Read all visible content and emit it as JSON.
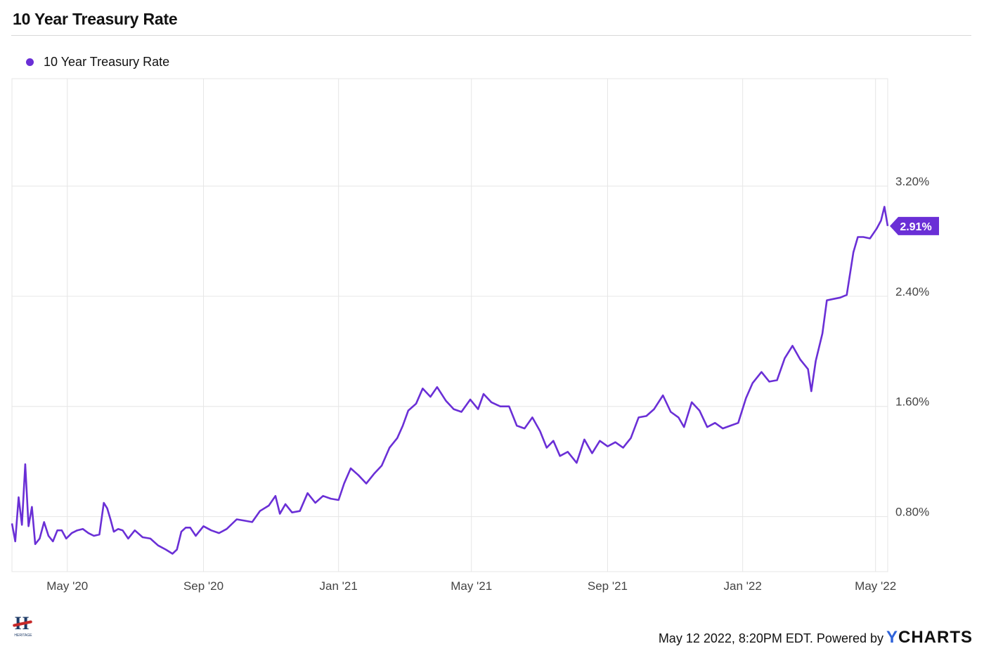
{
  "title": "10 Year Treasury Rate",
  "legend": {
    "label": "10 Year Treasury Rate"
  },
  "footer": {
    "timestamp": "May 12 2022, 8:20PM EDT. Powered by",
    "brand_y": "Y",
    "brand_rest": "CHARTS"
  },
  "logo": {
    "letter": "H",
    "text": "HERITAGE"
  },
  "colors": {
    "series": "#6a2fd6",
    "grid": "#e6e6e6",
    "text": "#333333"
  },
  "chart_data": {
    "type": "line",
    "title": "10 Year Treasury Rate",
    "xlabel": "",
    "ylabel": "",
    "yticks": [
      0.8,
      1.6,
      2.4,
      3.2
    ],
    "ytick_labels": [
      "0.80%",
      "1.60%",
      "2.40%",
      "3.20%"
    ],
    "xticks": [
      "2020-05-01",
      "2020-09-01",
      "2021-01-01",
      "2021-05-01",
      "2021-09-01",
      "2022-01-01",
      "2022-05-01"
    ],
    "xtick_labels": [
      "May '20",
      "Sep '20",
      "Jan '21",
      "May '21",
      "Sep '21",
      "Jan '22",
      "May '22"
    ],
    "xlim": [
      "2020-03-12",
      "2022-05-12"
    ],
    "ylim": [
      0.4,
      3.98
    ],
    "grid": true,
    "legend_position": "top-left",
    "last_value_label": "2.91%",
    "series": [
      {
        "name": "10 Year Treasury Rate",
        "x": [
          "2020-03-12",
          "2020-03-15",
          "2020-03-18",
          "2020-03-21",
          "2020-03-24",
          "2020-03-27",
          "2020-03-30",
          "2020-04-02",
          "2020-04-06",
          "2020-04-10",
          "2020-04-14",
          "2020-04-18",
          "2020-04-22",
          "2020-04-26",
          "2020-04-30",
          "2020-05-05",
          "2020-05-10",
          "2020-05-15",
          "2020-05-20",
          "2020-05-25",
          "2020-05-30",
          "2020-06-03",
          "2020-06-06",
          "2020-06-09",
          "2020-06-12",
          "2020-06-16",
          "2020-06-20",
          "2020-06-25",
          "2020-07-01",
          "2020-07-08",
          "2020-07-15",
          "2020-07-22",
          "2020-07-29",
          "2020-08-04",
          "2020-08-08",
          "2020-08-12",
          "2020-08-16",
          "2020-08-20",
          "2020-08-25",
          "2020-09-01",
          "2020-09-08",
          "2020-09-15",
          "2020-09-22",
          "2020-10-01",
          "2020-10-08",
          "2020-10-15",
          "2020-10-22",
          "2020-10-30",
          "2020-11-05",
          "2020-11-09",
          "2020-11-14",
          "2020-11-20",
          "2020-11-27",
          "2020-12-04",
          "2020-12-11",
          "2020-12-18",
          "2020-12-25",
          "2021-01-01",
          "2021-01-06",
          "2021-01-12",
          "2021-01-19",
          "2021-01-26",
          "2021-02-02",
          "2021-02-09",
          "2021-02-16",
          "2021-02-23",
          "2021-02-28",
          "2021-03-05",
          "2021-03-12",
          "2021-03-18",
          "2021-03-25",
          "2021-03-31",
          "2021-04-08",
          "2021-04-15",
          "2021-04-22",
          "2021-04-30",
          "2021-05-07",
          "2021-05-12",
          "2021-05-19",
          "2021-05-27",
          "2021-06-04",
          "2021-06-11",
          "2021-06-18",
          "2021-06-25",
          "2021-07-02",
          "2021-07-08",
          "2021-07-14",
          "2021-07-20",
          "2021-07-27",
          "2021-08-04",
          "2021-08-11",
          "2021-08-18",
          "2021-08-25",
          "2021-09-01",
          "2021-09-08",
          "2021-09-15",
          "2021-09-22",
          "2021-09-29",
          "2021-10-06",
          "2021-10-13",
          "2021-10-21",
          "2021-10-28",
          "2021-11-04",
          "2021-11-09",
          "2021-11-16",
          "2021-11-23",
          "2021-11-30",
          "2021-12-07",
          "2021-12-14",
          "2021-12-21",
          "2021-12-28",
          "2022-01-04",
          "2022-01-10",
          "2022-01-18",
          "2022-01-25",
          "2022-02-01",
          "2022-02-08",
          "2022-02-15",
          "2022-02-22",
          "2022-03-01",
          "2022-03-04",
          "2022-03-08",
          "2022-03-14",
          "2022-03-18",
          "2022-03-24",
          "2022-03-30",
          "2022-04-05",
          "2022-04-11",
          "2022-04-15",
          "2022-04-20",
          "2022-04-26",
          "2022-05-02",
          "2022-05-06",
          "2022-05-09",
          "2022-05-12"
        ],
        "y": [
          0.75,
          0.62,
          0.94,
          0.74,
          1.18,
          0.73,
          0.87,
          0.6,
          0.64,
          0.76,
          0.66,
          0.62,
          0.7,
          0.7,
          0.64,
          0.68,
          0.7,
          0.71,
          0.68,
          0.66,
          0.67,
          0.9,
          0.86,
          0.78,
          0.69,
          0.71,
          0.7,
          0.64,
          0.7,
          0.65,
          0.64,
          0.59,
          0.56,
          0.53,
          0.56,
          0.69,
          0.72,
          0.72,
          0.66,
          0.73,
          0.7,
          0.68,
          0.71,
          0.78,
          0.77,
          0.76,
          0.84,
          0.88,
          0.95,
          0.82,
          0.89,
          0.83,
          0.84,
          0.97,
          0.9,
          0.95,
          0.93,
          0.92,
          1.04,
          1.15,
          1.1,
          1.04,
          1.11,
          1.17,
          1.3,
          1.37,
          1.46,
          1.57,
          1.62,
          1.73,
          1.67,
          1.74,
          1.64,
          1.58,
          1.56,
          1.65,
          1.58,
          1.69,
          1.63,
          1.6,
          1.6,
          1.46,
          1.44,
          1.52,
          1.42,
          1.3,
          1.35,
          1.24,
          1.27,
          1.19,
          1.36,
          1.26,
          1.35,
          1.31,
          1.34,
          1.3,
          1.37,
          1.52,
          1.53,
          1.58,
          1.68,
          1.56,
          1.52,
          1.45,
          1.63,
          1.57,
          1.45,
          1.48,
          1.44,
          1.46,
          1.48,
          1.66,
          1.77,
          1.85,
          1.78,
          1.79,
          1.95,
          2.04,
          1.94,
          1.87,
          1.71,
          1.93,
          2.13,
          2.37,
          2.38,
          2.39,
          2.41,
          2.72,
          2.83,
          2.83,
          2.82,
          2.89,
          2.95,
          3.05,
          2.91
        ]
      }
    ]
  }
}
